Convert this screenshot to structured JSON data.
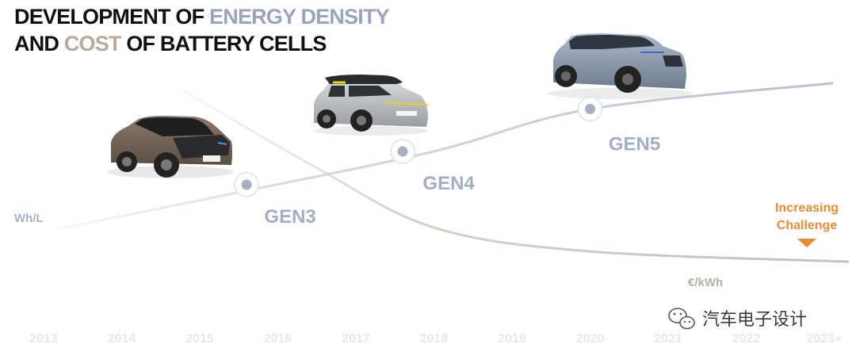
{
  "header": {
    "line1_prefix": "DEVELOPMENT OF ",
    "line1_highlight": "ENERGY DENSITY",
    "line2_prefix": "AND ",
    "line2_highlight": "COST",
    "line2_suffix": " OF BATTERY CELLS"
  },
  "chart_data": {
    "type": "line",
    "title": "DEVELOPMENT OF ENERGY DENSITY AND COST OF BATTERY CELLS",
    "categories": [
      "2013",
      "2014",
      "2015",
      "2016",
      "2017",
      "2018",
      "2019",
      "2020",
      "2021",
      "2022",
      "2023+"
    ],
    "series": [
      {
        "name": "Wh/L",
        "label": "Wh/L",
        "color": "#c9d0dd",
        "points": [
          [
            0.2,
            0.04
          ],
          [
            2.5,
            0.28
          ],
          [
            5.0,
            0.55
          ],
          [
            7.0,
            0.83
          ],
          [
            10.1,
            1.0
          ]
        ]
      },
      {
        "name": "€/kWh",
        "label": "€/kWh",
        "color": "#c8c3ba",
        "points": [
          [
            1.8,
            1.0
          ],
          [
            3.5,
            0.55
          ],
          [
            5.0,
            0.2
          ],
          [
            7.0,
            0.06
          ],
          [
            10.3,
            0.0
          ]
        ]
      }
    ],
    "milestones": [
      {
        "x": 2.6,
        "y": 0.33,
        "label": "GEN3"
      },
      {
        "x": 4.6,
        "y": 0.55,
        "label": "GEN4"
      },
      {
        "x": 7.0,
        "y": 0.83,
        "label": "GEN5"
      }
    ],
    "annotations": {
      "challenge_line1": "Increasing",
      "challenge_line2": "Challenge",
      "challenge_color": "#ed8a34"
    },
    "xlim": [
      0,
      10
    ],
    "ylim": [
      0,
      1
    ],
    "grid": false,
    "legend": "none"
  },
  "images": {
    "car_gen3": "BMW i3 hatchback in bronze",
    "car_gen4": "MINI Cooper SE in silver with yellow accents",
    "car_gen5": "BMW iX3 SUV in blue-grey"
  },
  "watermark": {
    "text": "汽车电子设计",
    "icon": "wechat-icon"
  },
  "colors": {
    "energy_accent": "#9aa5bb",
    "cost_accent": "#b7ab98",
    "tick": "#e6e8ec",
    "challenge": "#ed8a34"
  }
}
